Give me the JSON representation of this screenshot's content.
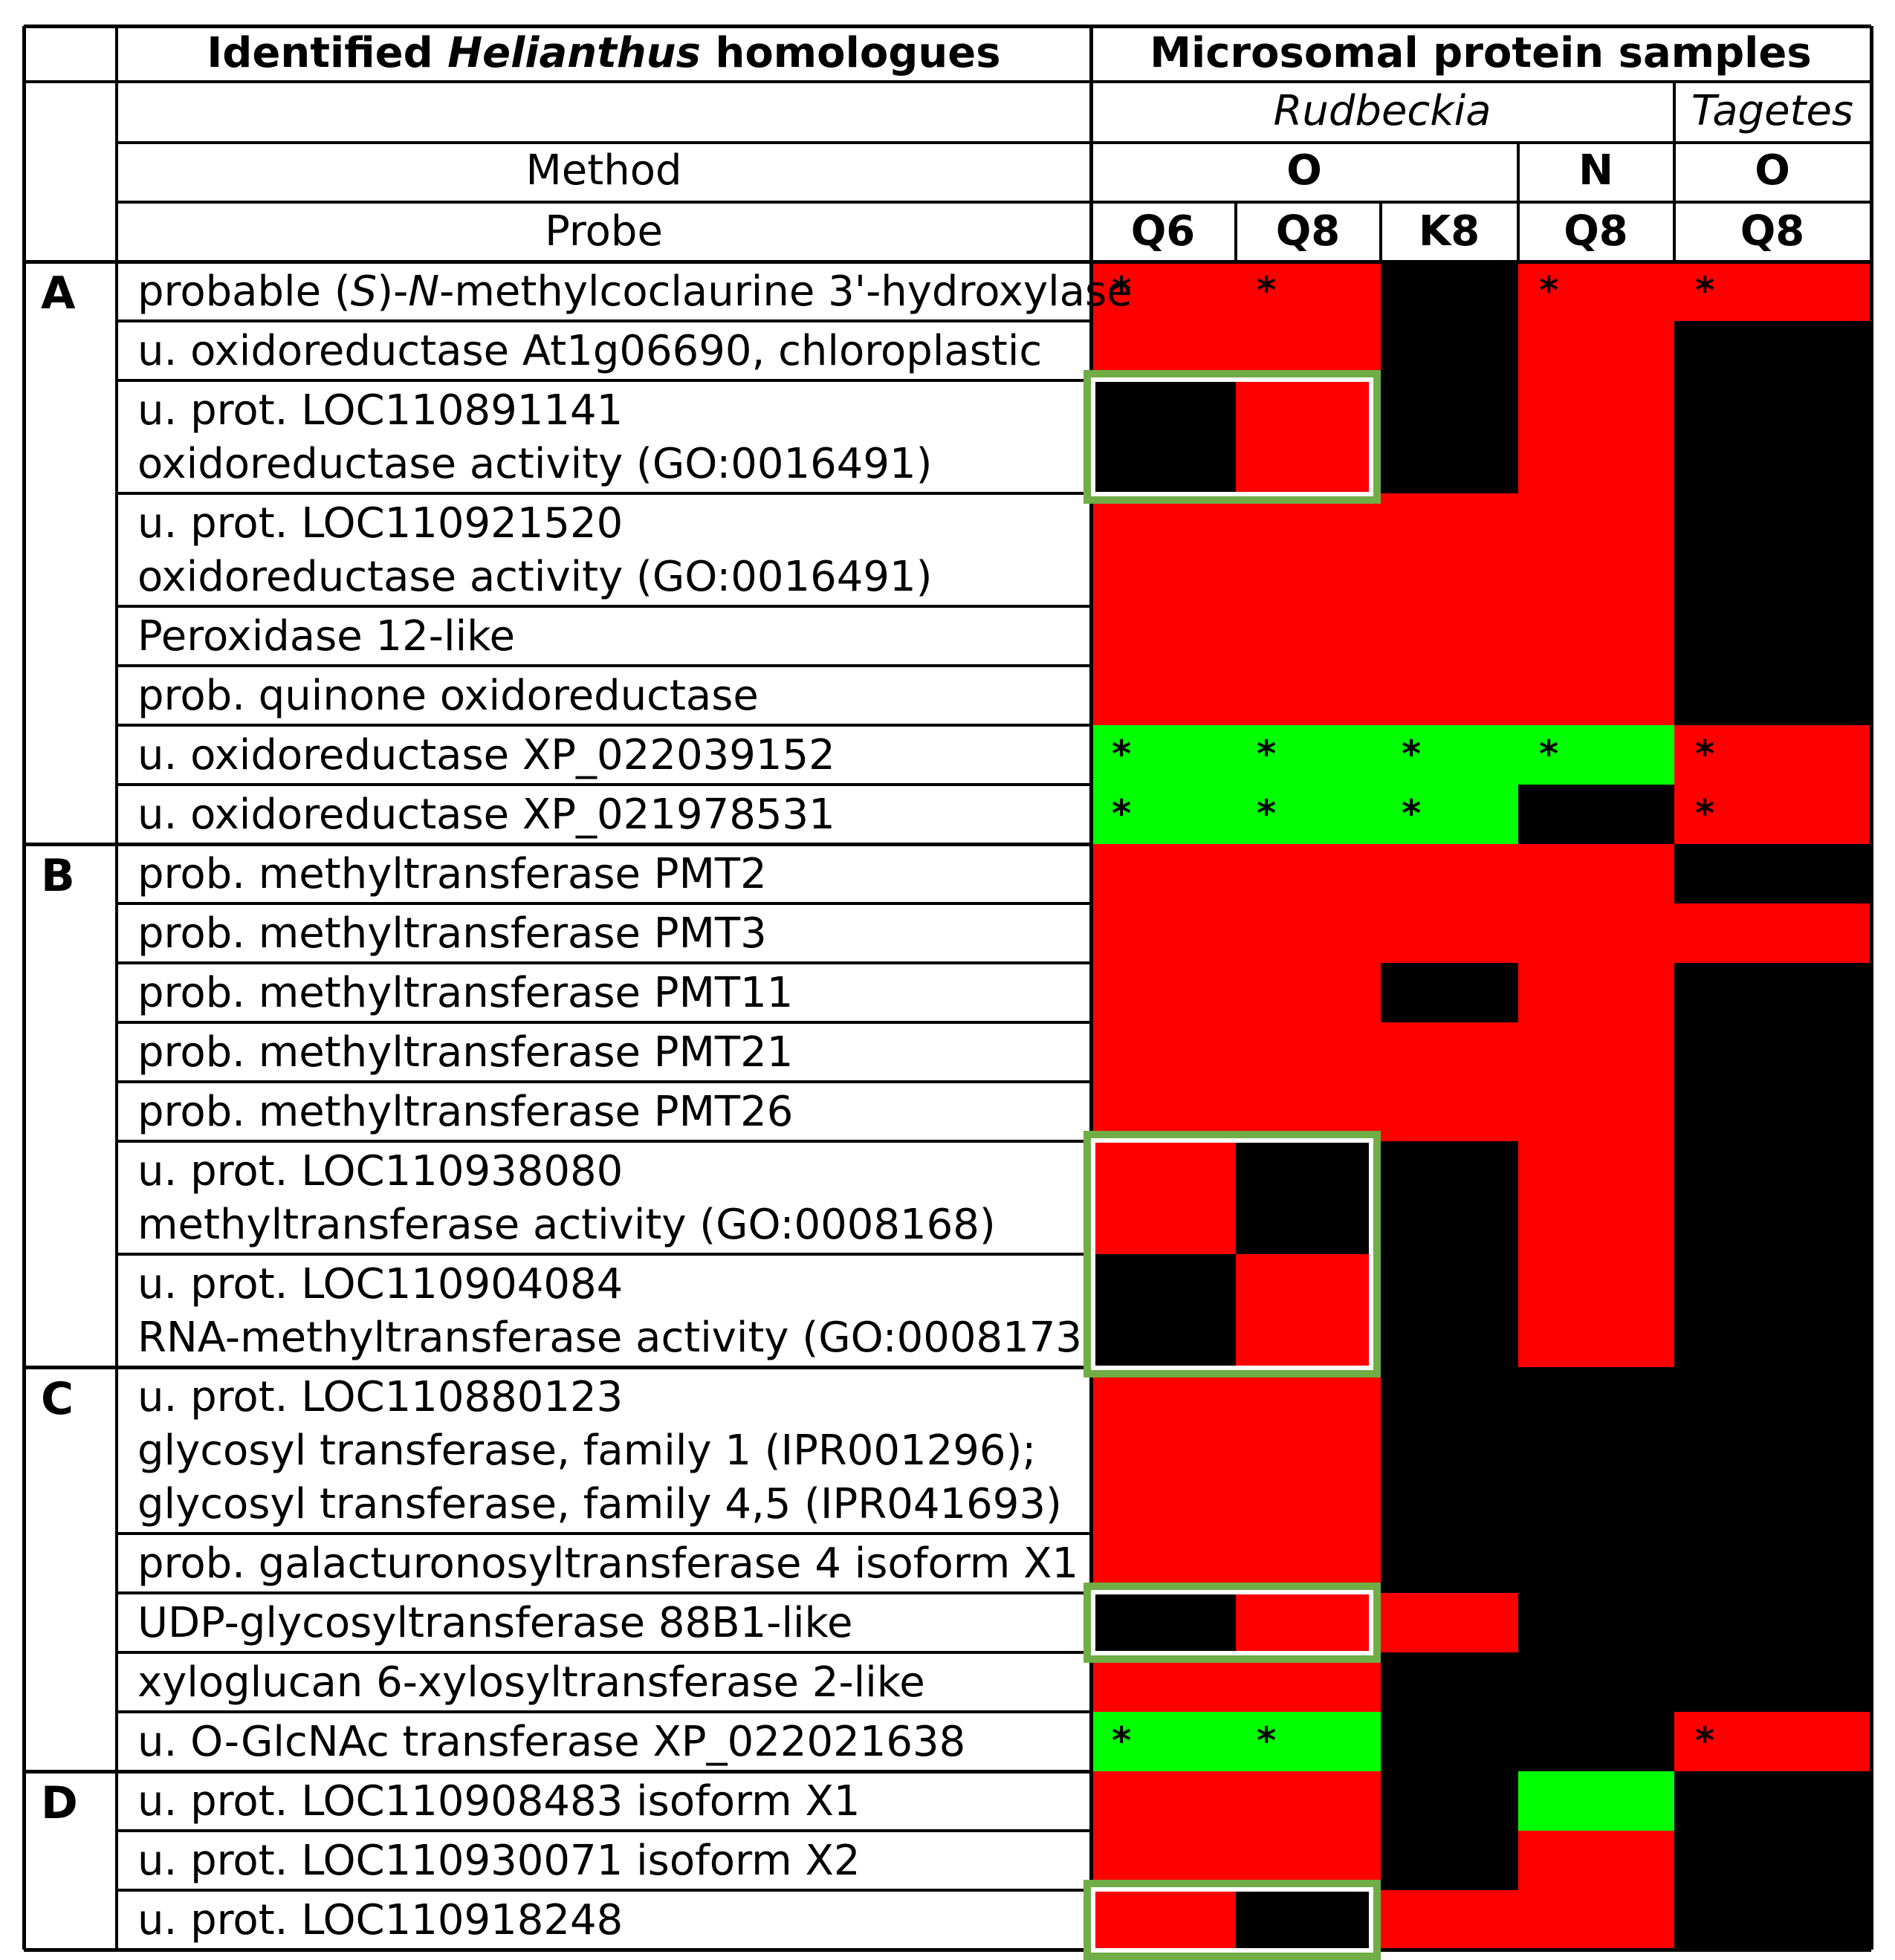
{
  "header": {
    "homologues_pre": "Identified ",
    "homologues_italic": "Helianthus",
    "homologues_post": " homologues",
    "samples": "Microsomal protein samples",
    "species_rudbeckia": "Rudbeckia",
    "species_tagetes": "Tagetes",
    "method_label": "Method",
    "probe_label": "Probe",
    "methods": [
      "O",
      "N",
      "O"
    ],
    "probes": [
      "Q6",
      "Q8",
      "K8",
      "Q8",
      "Q8"
    ]
  },
  "groups": [
    "A",
    "B",
    "C",
    "D"
  ],
  "colors": {
    "red": "#ff0000",
    "green": "#00ff00",
    "black": "#000000",
    "highlight_box": "#70ad47"
  },
  "cell_codes": {
    "R": "red",
    "G": "green",
    "K": "black",
    "*": "significant"
  },
  "rows": [
    {
      "group": "A",
      "lines": [
        [
          [
            "probable (",
            ""
          ],
          [
            "S",
            "i"
          ],
          [
            ")-",
            ""
          ],
          [
            "N",
            "i"
          ],
          [
            "-methylcoclaurine 3'-hydroxylase",
            ""
          ]
        ]
      ],
      "cells": [
        "R",
        "R",
        "K",
        "R",
        "R"
      ],
      "stars": [
        1,
        1,
        0,
        1,
        1
      ]
    },
    {
      "group": "A",
      "lines": [
        "u. oxidoreductase At1g06690, chloroplastic"
      ],
      "cells": [
        "R",
        "R",
        "K",
        "R",
        "K"
      ],
      "stars": [
        0,
        0,
        0,
        0,
        0
      ]
    },
    {
      "group": "A",
      "lines": [
        "u. prot. LOC110891141",
        "oxidoreductase activity (GO:0016491)"
      ],
      "cells": [
        "K",
        "R",
        "K",
        "R",
        "K"
      ],
      "stars": [
        0,
        0,
        0,
        0,
        0
      ],
      "highlight": true
    },
    {
      "group": "A",
      "lines": [
        "u. prot. LOC110921520",
        "oxidoreductase activity (GO:0016491)"
      ],
      "cells": [
        "R",
        "R",
        "R",
        "R",
        "K"
      ],
      "stars": [
        0,
        0,
        0,
        0,
        0
      ]
    },
    {
      "group": "A",
      "lines": [
        "Peroxidase 12-like"
      ],
      "cells": [
        "R",
        "R",
        "R",
        "R",
        "K"
      ],
      "stars": [
        0,
        0,
        0,
        0,
        0
      ]
    },
    {
      "group": "A",
      "lines": [
        "prob. quinone oxidoreductase"
      ],
      "cells": [
        "R",
        "R",
        "R",
        "R",
        "K"
      ],
      "stars": [
        0,
        0,
        0,
        0,
        0
      ]
    },
    {
      "group": "A",
      "lines": [
        "u. oxidoreductase XP_022039152"
      ],
      "cells": [
        "G",
        "G",
        "G",
        "G",
        "R"
      ],
      "stars": [
        1,
        1,
        1,
        1,
        1
      ]
    },
    {
      "group": "A",
      "lines": [
        "u. oxidoreductase XP_021978531"
      ],
      "cells": [
        "G",
        "G",
        "G",
        "K",
        "R"
      ],
      "stars": [
        1,
        1,
        1,
        0,
        1
      ]
    },
    {
      "group": "B",
      "lines": [
        "prob. methyltransferase PMT2"
      ],
      "cells": [
        "R",
        "R",
        "R",
        "R",
        "K"
      ],
      "stars": [
        0,
        0,
        0,
        0,
        0
      ]
    },
    {
      "group": "B",
      "lines": [
        "prob. methyltransferase PMT3"
      ],
      "cells": [
        "R",
        "R",
        "R",
        "R",
        "R"
      ],
      "stars": [
        0,
        0,
        0,
        0,
        0
      ]
    },
    {
      "group": "B",
      "lines": [
        "prob. methyltransferase PMT11"
      ],
      "cells": [
        "R",
        "R",
        "K",
        "R",
        "K"
      ],
      "stars": [
        0,
        0,
        0,
        0,
        0
      ]
    },
    {
      "group": "B",
      "lines": [
        "prob. methyltransferase PMT21"
      ],
      "cells": [
        "R",
        "R",
        "R",
        "R",
        "K"
      ],
      "stars": [
        0,
        0,
        0,
        0,
        0
      ]
    },
    {
      "group": "B",
      "lines": [
        "prob. methyltransferase PMT26"
      ],
      "cells": [
        "R",
        "R",
        "R",
        "R",
        "K"
      ],
      "stars": [
        0,
        0,
        0,
        0,
        0
      ]
    },
    {
      "group": "B",
      "lines": [
        "u. prot. LOC110938080",
        "methyltransferase activity (GO:0008168)"
      ],
      "cells": [
        "R",
        "K",
        "K",
        "R",
        "K"
      ],
      "stars": [
        0,
        0,
        0,
        0,
        0
      ],
      "highlight": "start"
    },
    {
      "group": "B",
      "lines": [
        "u. prot. LOC110904084",
        "RNA-methyltransferase activity (GO:0008173)"
      ],
      "cells": [
        "K",
        "R",
        "K",
        "R",
        "K"
      ],
      "stars": [
        0,
        0,
        0,
        0,
        0
      ],
      "highlight": "end"
    },
    {
      "group": "C",
      "lines": [
        "u. prot. LOC110880123",
        "glycosyl transferase, family 1 (IPR001296);",
        "glycosyl transferase, family 4,5 (IPR041693)"
      ],
      "cells": [
        "R",
        "R",
        "K",
        "K",
        "K"
      ],
      "stars": [
        0,
        0,
        0,
        0,
        0
      ]
    },
    {
      "group": "C",
      "lines": [
        "prob. galacturonosyltransferase 4 isoform X1"
      ],
      "cells": [
        "R",
        "R",
        "K",
        "K",
        "K"
      ],
      "stars": [
        0,
        0,
        0,
        0,
        0
      ]
    },
    {
      "group": "C",
      "lines": [
        "UDP-glycosyltransferase 88B1-like"
      ],
      "cells": [
        "K",
        "R",
        "R",
        "K",
        "K"
      ],
      "stars": [
        0,
        0,
        0,
        0,
        0
      ],
      "highlight": true
    },
    {
      "group": "C",
      "lines": [
        "xyloglucan 6-xylosyltransferase 2-like"
      ],
      "cells": [
        "R",
        "R",
        "K",
        "K",
        "K"
      ],
      "stars": [
        0,
        0,
        0,
        0,
        0
      ]
    },
    {
      "group": "C",
      "lines": [
        "u. O-GlcNAc transferase XP_022021638"
      ],
      "cells": [
        "G",
        "G",
        "K",
        "K",
        "R"
      ],
      "stars": [
        1,
        1,
        0,
        0,
        1
      ]
    },
    {
      "group": "D",
      "lines": [
        "u. prot. LOC110908483 isoform X1"
      ],
      "cells": [
        "R",
        "R",
        "K",
        "G",
        "K"
      ],
      "stars": [
        0,
        0,
        0,
        0,
        0
      ]
    },
    {
      "group": "D",
      "lines": [
        "u. prot. LOC110930071 isoform X2"
      ],
      "cells": [
        "R",
        "R",
        "K",
        "R",
        "K"
      ],
      "stars": [
        0,
        0,
        0,
        0,
        0
      ]
    },
    {
      "group": "D",
      "lines": [
        "u. prot. LOC110918248"
      ],
      "cells": [
        "R",
        "K",
        "R",
        "R",
        "K"
      ],
      "stars": [
        0,
        0,
        0,
        0,
        0
      ],
      "highlight": true
    }
  ]
}
